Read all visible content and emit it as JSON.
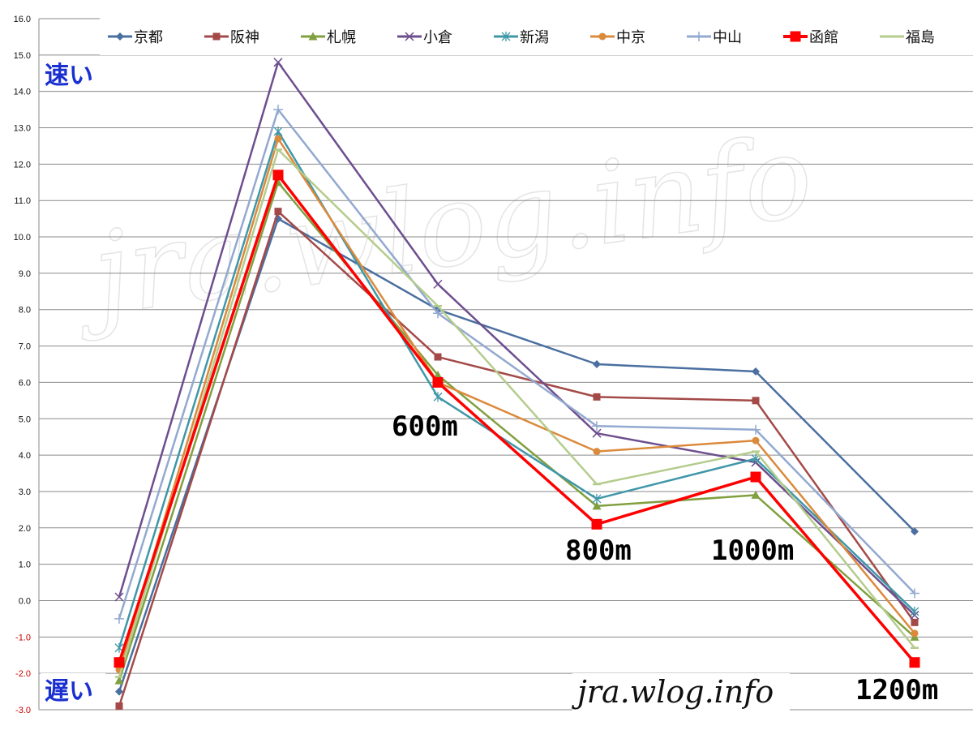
{
  "chart_data": {
    "type": "line",
    "title": "",
    "xlabel": "",
    "ylabel": "",
    "ylim": [
      -3.0,
      16.0
    ],
    "y_ticks": [
      "16.0",
      "15.0",
      "14.0",
      "13.0",
      "12.0",
      "11.0",
      "10.0",
      "9.0",
      "8.0",
      "7.0",
      "6.0",
      "5.0",
      "4.0",
      "3.0",
      "2.0",
      "1.0",
      "0.0",
      "-1.0",
      "-2.0",
      "-3.0"
    ],
    "negative_tick_color": "#cc0000",
    "grid": true,
    "legend_position": "top",
    "speed_labels": {
      "fast": "速い",
      "slow": "遅い"
    },
    "distance_labels": [
      {
        "text": "600m",
        "x_index": 2
      },
      {
        "text": "800m",
        "x_index": 3
      },
      {
        "text": "1000m",
        "x_index": 4
      },
      {
        "text": "1200m",
        "x_index": 5
      }
    ],
    "watermark": "jra.wlog.info",
    "footer_text": "jra.wlog.info",
    "x_count": 6,
    "series": [
      {
        "name": "京都",
        "color": "#4a6fa0",
        "marker": "diamond",
        "values": [
          -2.5,
          10.5,
          8.0,
          6.5,
          6.3,
          1.9
        ]
      },
      {
        "name": "阪神",
        "color": "#a34a48",
        "marker": "square",
        "values": [
          -2.9,
          10.7,
          6.7,
          5.6,
          5.5,
          -0.6
        ]
      },
      {
        "name": "札幌",
        "color": "#80a040",
        "marker": "triangle",
        "values": [
          -2.2,
          11.5,
          6.2,
          2.6,
          2.9,
          -1.0
        ]
      },
      {
        "name": "小倉",
        "color": "#6d4e8e",
        "marker": "x",
        "values": [
          0.1,
          14.8,
          8.7,
          4.6,
          3.8,
          -0.4
        ]
      },
      {
        "name": "新潟",
        "color": "#3f97a8",
        "marker": "asterisk",
        "values": [
          -1.3,
          12.9,
          5.6,
          2.8,
          3.9,
          -0.3
        ]
      },
      {
        "name": "中京",
        "color": "#db8a3c",
        "marker": "circle",
        "values": [
          -1.9,
          12.7,
          6.0,
          4.1,
          4.4,
          -0.9
        ]
      },
      {
        "name": "中山",
        "color": "#93a9d0",
        "marker": "plus",
        "values": [
          -0.5,
          13.5,
          7.9,
          4.8,
          4.7,
          0.2
        ]
      },
      {
        "name": "函館",
        "color": "#ff0000",
        "marker": "bigsquare",
        "values": [
          -1.7,
          11.7,
          6.0,
          2.1,
          3.4,
          -1.7
        ]
      },
      {
        "name": "福島",
        "color": "#b4cc8c",
        "marker": "dash",
        "values": [
          -2.1,
          12.4,
          8.1,
          3.2,
          4.1,
          -1.3
        ]
      }
    ]
  }
}
